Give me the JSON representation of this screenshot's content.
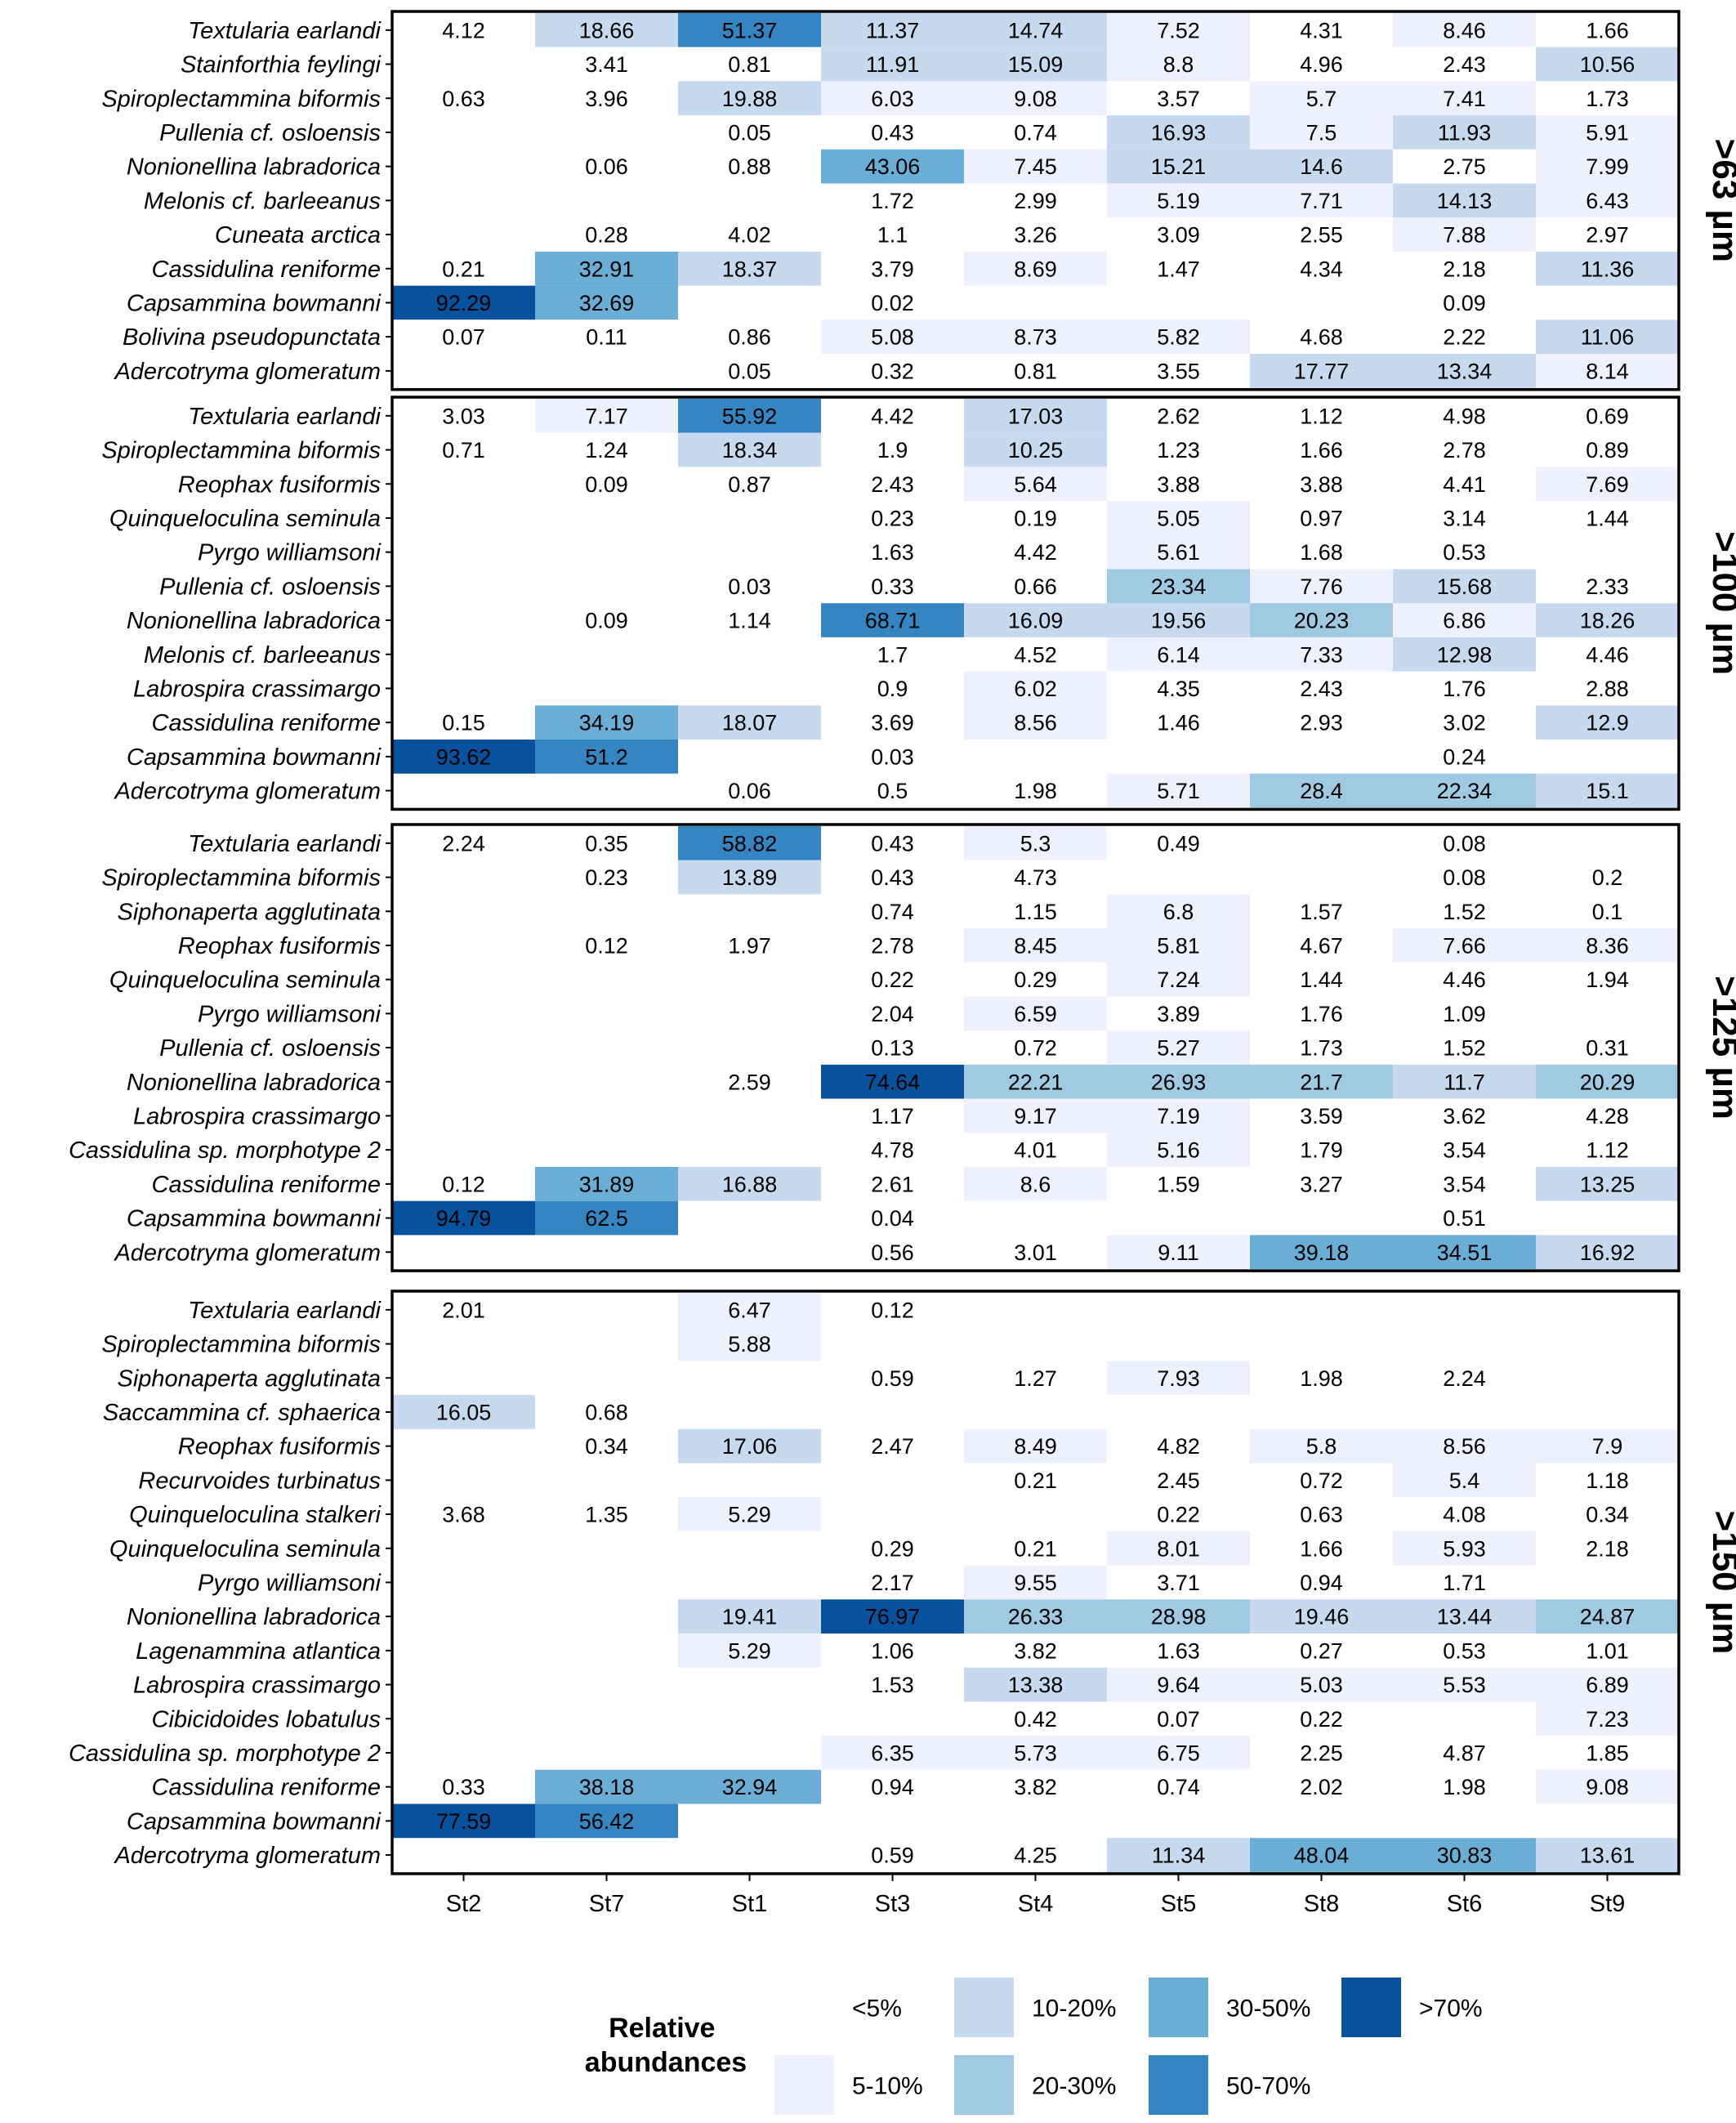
{
  "chart_data": {
    "type": "heatmap",
    "stations": [
      "St2",
      "St7",
      "St1",
      "St3",
      "St4",
      "St5",
      "St8",
      "St6",
      "St9"
    ],
    "panels": [
      {
        "label": ">63 µm",
        "rows": [
          {
            "species": "Textularia earlandi",
            "values": [
              4.12,
              18.66,
              51.37,
              11.37,
              14.74,
              7.52,
              4.31,
              8.46,
              1.66
            ]
          },
          {
            "species": "Stainforthia feylingi",
            "values": [
              null,
              3.41,
              0.81,
              11.91,
              15.09,
              8.8,
              4.96,
              2.43,
              10.56
            ]
          },
          {
            "species": "Spiroplectammina biformis",
            "values": [
              0.63,
              3.96,
              19.88,
              6.03,
              9.08,
              3.57,
              5.7,
              7.41,
              1.73
            ]
          },
          {
            "species": "Pullenia cf. osloensis",
            "values": [
              null,
              null,
              0.05,
              0.43,
              0.74,
              16.93,
              7.5,
              11.93,
              5.91
            ]
          },
          {
            "species": "Nonionellina labradorica",
            "values": [
              null,
              0.06,
              0.88,
              43.06,
              7.45,
              15.21,
              14.6,
              2.75,
              7.99
            ]
          },
          {
            "species": "Melonis cf. barleeanus",
            "values": [
              null,
              null,
              null,
              1.72,
              2.99,
              5.19,
              7.71,
              14.13,
              6.43
            ]
          },
          {
            "species": "Cuneata arctica",
            "values": [
              null,
              0.28,
              4.02,
              1.1,
              3.26,
              3.09,
              2.55,
              7.88,
              2.97
            ]
          },
          {
            "species": "Cassidulina reniforme",
            "values": [
              0.21,
              32.91,
              18.37,
              3.79,
              8.69,
              1.47,
              4.34,
              2.18,
              11.36
            ]
          },
          {
            "species": "Capsammina bowmanni",
            "values": [
              92.29,
              32.69,
              null,
              0.02,
              null,
              null,
              null,
              0.09,
              null
            ]
          },
          {
            "species": "Bolivina pseudopunctata",
            "values": [
              0.07,
              0.11,
              0.86,
              5.08,
              8.73,
              5.82,
              4.68,
              2.22,
              11.06
            ]
          },
          {
            "species": "Adercotryma glomeratum",
            "values": [
              null,
              null,
              0.05,
              0.32,
              0.81,
              3.55,
              17.77,
              13.34,
              8.14
            ]
          }
        ]
      },
      {
        "label": ">100 µm",
        "rows": [
          {
            "species": "Textularia earlandi",
            "values": [
              3.03,
              7.17,
              55.92,
              4.42,
              17.03,
              2.62,
              1.12,
              4.98,
              0.69
            ]
          },
          {
            "species": "Spiroplectammina biformis",
            "values": [
              0.71,
              1.24,
              18.34,
              1.9,
              10.25,
              1.23,
              1.66,
              2.78,
              0.89
            ]
          },
          {
            "species": "Reophax fusiformis",
            "values": [
              null,
              0.09,
              0.87,
              2.43,
              5.64,
              3.88,
              3.88,
              4.41,
              7.69
            ]
          },
          {
            "species": "Quinqueloculina seminula",
            "values": [
              null,
              null,
              null,
              0.23,
              0.19,
              5.05,
              0.97,
              3.14,
              1.44
            ]
          },
          {
            "species": "Pyrgo williamsoni",
            "values": [
              null,
              null,
              null,
              1.63,
              4.42,
              5.61,
              1.68,
              0.53,
              null
            ]
          },
          {
            "species": "Pullenia cf. osloensis",
            "values": [
              null,
              null,
              0.03,
              0.33,
              0.66,
              23.34,
              7.76,
              15.68,
              2.33
            ]
          },
          {
            "species": "Nonionellina labradorica",
            "values": [
              null,
              0.09,
              1.14,
              68.71,
              16.09,
              19.56,
              20.23,
              6.86,
              18.26
            ]
          },
          {
            "species": "Melonis cf. barleeanus",
            "values": [
              null,
              null,
              null,
              1.7,
              4.52,
              6.14,
              7.33,
              12.98,
              4.46
            ]
          },
          {
            "species": "Labrospira crassimargo",
            "values": [
              null,
              null,
              null,
              0.9,
              6.02,
              4.35,
              2.43,
              1.76,
              2.88
            ]
          },
          {
            "species": "Cassidulina reniforme",
            "values": [
              0.15,
              34.19,
              18.07,
              3.69,
              8.56,
              1.46,
              2.93,
              3.02,
              12.9
            ]
          },
          {
            "species": "Capsammina bowmanni",
            "values": [
              93.62,
              51.2,
              null,
              0.03,
              null,
              null,
              null,
              0.24,
              null
            ]
          },
          {
            "species": "Adercotryma glomeratum",
            "values": [
              null,
              null,
              0.06,
              0.5,
              1.98,
              5.71,
              28.4,
              22.34,
              15.1
            ]
          }
        ]
      },
      {
        "label": ">125 µm",
        "rows": [
          {
            "species": "Textularia earlandi",
            "values": [
              2.24,
              0.35,
              58.82,
              0.43,
              5.3,
              0.49,
              null,
              0.08,
              null
            ]
          },
          {
            "species": "Spiroplectammina biformis",
            "values": [
              null,
              0.23,
              13.89,
              0.43,
              4.73,
              null,
              null,
              0.08,
              0.2
            ]
          },
          {
            "species": "Siphonaperta agglutinata",
            "values": [
              null,
              null,
              null,
              0.74,
              1.15,
              6.8,
              1.57,
              1.52,
              0.1
            ]
          },
          {
            "species": "Reophax fusiformis",
            "values": [
              null,
              0.12,
              1.97,
              2.78,
              8.45,
              5.81,
              4.67,
              7.66,
              8.36
            ]
          },
          {
            "species": "Quinqueloculina seminula",
            "values": [
              null,
              null,
              null,
              0.22,
              0.29,
              7.24,
              1.44,
              4.46,
              1.94
            ]
          },
          {
            "species": "Pyrgo williamsoni",
            "values": [
              null,
              null,
              null,
              2.04,
              6.59,
              3.89,
              1.76,
              1.09,
              null
            ]
          },
          {
            "species": "Pullenia cf. osloensis",
            "values": [
              null,
              null,
              null,
              0.13,
              0.72,
              5.27,
              1.73,
              1.52,
              0.31
            ]
          },
          {
            "species": "Nonionellina labradorica",
            "values": [
              null,
              null,
              2.59,
              74.64,
              22.21,
              26.93,
              21.7,
              11.7,
              20.29
            ]
          },
          {
            "species": "Labrospira crassimargo",
            "values": [
              null,
              null,
              null,
              1.17,
              9.17,
              7.19,
              3.59,
              3.62,
              4.28
            ]
          },
          {
            "species": "Cassidulina sp. morphotype 2",
            "values": [
              null,
              null,
              null,
              4.78,
              4.01,
              5.16,
              1.79,
              3.54,
              1.12
            ]
          },
          {
            "species": "Cassidulina reniforme",
            "values": [
              0.12,
              31.89,
              16.88,
              2.61,
              8.6,
              1.59,
              3.27,
              3.54,
              13.25
            ]
          },
          {
            "species": "Capsammina bowmanni",
            "values": [
              94.79,
              62.5,
              null,
              0.04,
              null,
              null,
              null,
              0.51,
              null
            ]
          },
          {
            "species": "Adercotryma glomeratum",
            "values": [
              null,
              null,
              null,
              0.56,
              3.01,
              9.11,
              39.18,
              34.51,
              16.92
            ]
          }
        ]
      },
      {
        "label": ">150 µm",
        "rows": [
          {
            "species": "Textularia earlandi",
            "values": [
              2.01,
              null,
              6.47,
              0.12,
              null,
              null,
              null,
              null,
              null
            ]
          },
          {
            "species": "Spiroplectammina biformis",
            "values": [
              null,
              null,
              5.88,
              null,
              null,
              null,
              null,
              null,
              null
            ]
          },
          {
            "species": "Siphonaperta agglutinata",
            "values": [
              null,
              null,
              null,
              0.59,
              1.27,
              7.93,
              1.98,
              2.24,
              null
            ]
          },
          {
            "species": "Saccammina cf. sphaerica",
            "values": [
              16.05,
              0.68,
              null,
              null,
              null,
              null,
              null,
              null,
              null
            ]
          },
          {
            "species": "Reophax fusiformis",
            "values": [
              null,
              0.34,
              17.06,
              2.47,
              8.49,
              4.82,
              5.8,
              8.56,
              7.9
            ]
          },
          {
            "species": "Recurvoides turbinatus",
            "values": [
              null,
              null,
              null,
              null,
              0.21,
              2.45,
              0.72,
              5.4,
              1.18
            ]
          },
          {
            "species": "Quinqueloculina stalkeri",
            "values": [
              3.68,
              1.35,
              5.29,
              null,
              null,
              0.22,
              0.63,
              4.08,
              0.34
            ]
          },
          {
            "species": "Quinqueloculina seminula",
            "values": [
              null,
              null,
              null,
              0.29,
              0.21,
              8.01,
              1.66,
              5.93,
              2.18
            ]
          },
          {
            "species": "Pyrgo williamsoni",
            "values": [
              null,
              null,
              null,
              2.17,
              9.55,
              3.71,
              0.94,
              1.71,
              null
            ]
          },
          {
            "species": "Nonionellina labradorica",
            "values": [
              null,
              null,
              19.41,
              76.97,
              26.33,
              28.98,
              19.46,
              13.44,
              24.87
            ]
          },
          {
            "species": "Lagenammina atlantica",
            "values": [
              null,
              null,
              5.29,
              1.06,
              3.82,
              1.63,
              0.27,
              0.53,
              1.01
            ]
          },
          {
            "species": "Labrospira crassimargo",
            "values": [
              null,
              null,
              null,
              1.53,
              13.38,
              9.64,
              5.03,
              5.53,
              6.89
            ]
          },
          {
            "species": "Cibicidoides lobatulus",
            "values": [
              null,
              null,
              null,
              null,
              0.42,
              0.07,
              0.22,
              null,
              7.23
            ]
          },
          {
            "species": "Cassidulina sp. morphotype 2",
            "values": [
              null,
              null,
              null,
              6.35,
              5.73,
              6.75,
              2.25,
              4.87,
              1.85
            ]
          },
          {
            "species": "Cassidulina reniforme",
            "values": [
              0.33,
              38.18,
              32.94,
              0.94,
              3.82,
              0.74,
              2.02,
              1.98,
              9.08
            ]
          },
          {
            "species": "Capsammina bowmanni",
            "values": [
              77.59,
              56.42,
              null,
              null,
              null,
              null,
              null,
              null,
              null
            ]
          },
          {
            "species": "Adercotryma glomeratum",
            "values": [
              null,
              null,
              null,
              0.59,
              4.25,
              11.34,
              48.04,
              30.83,
              13.61
            ]
          }
        ]
      }
    ],
    "legend": {
      "title": "Relative abundances",
      "bins": [
        {
          "label": "<5%",
          "min": 0,
          "max": 5,
          "color": "#ffffff"
        },
        {
          "label": "5-10%",
          "min": 5,
          "max": 10,
          "color": "#eef1fd"
        },
        {
          "label": "10-20%",
          "min": 10,
          "max": 20,
          "color": "#c7d9ef"
        },
        {
          "label": "20-30%",
          "min": 20,
          "max": 30,
          "color": "#9fcae1"
        },
        {
          "label": "30-50%",
          "min": 30,
          "max": 50,
          "color": "#6aaed6"
        },
        {
          "label": "50-70%",
          "min": 50,
          "max": 70,
          "color": "#3585c2"
        },
        {
          "label": ">70%",
          "min": 70,
          "max": 100,
          "color": "#08519c"
        }
      ]
    }
  }
}
